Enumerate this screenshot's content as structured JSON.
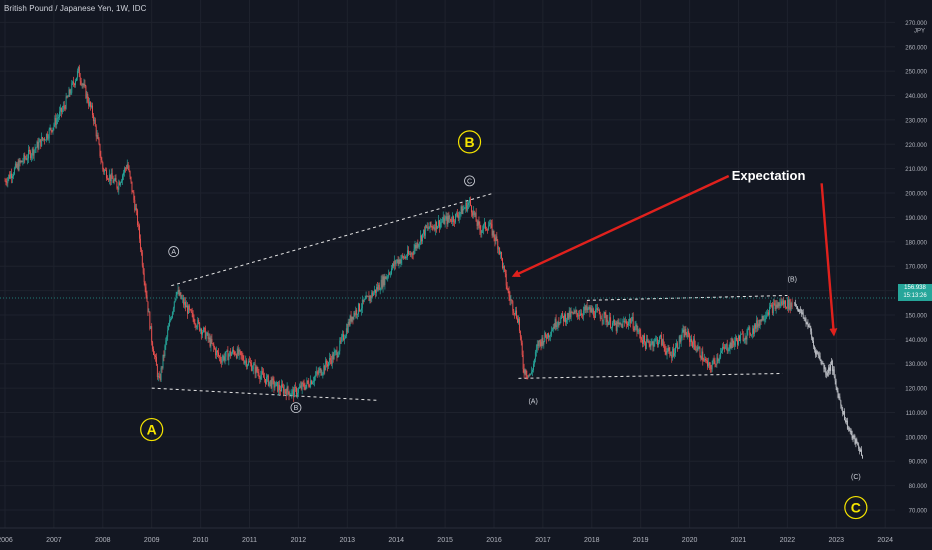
{
  "header": {
    "title": "British Pound / Japanese Yen, 1W, IDC"
  },
  "price_tag": {
    "price": "156.938",
    "countdown": "15:13:26",
    "color": "#26a69a"
  },
  "colors": {
    "background": "#131722",
    "grid": "#1e222d",
    "up": "#26a69a",
    "down": "#ef5350",
    "axis_text": "#b2b5be",
    "projection": "#c0c3c9",
    "annotation_arrow": "#e0211d",
    "wave_letter": "#f5e400"
  },
  "chart_data": {
    "type": "line",
    "title": "British Pound / Japanese Yen, 1W, IDC",
    "xlabel": "",
    "ylabel": "",
    "currency_label": "JPY",
    "ylim": [
      66,
      270
    ],
    "xlim": [
      2006.0,
      2024.3
    ],
    "grid": true,
    "y_ticks": [
      "70.000",
      "80.000",
      "90.000",
      "100.000",
      "110.000",
      "120.000",
      "130.000",
      "140.000",
      "150.000",
      "160.000",
      "170.000",
      "180.000",
      "190.000",
      "200.000",
      "210.000",
      "220.000",
      "230.000",
      "240.000",
      "250.000",
      "260.000",
      "270.000"
    ],
    "x_ticks": [
      "2006",
      "2007",
      "2008",
      "2009",
      "2010",
      "2011",
      "2012",
      "2013",
      "2014",
      "2015",
      "2016",
      "2017",
      "2018",
      "2019",
      "2020",
      "2021",
      "2022",
      "2023",
      "2024"
    ],
    "series": [
      {
        "kind": "history",
        "x": [
          2006.0,
          2006.3,
          2006.6,
          2006.9,
          2007.2,
          2007.5,
          2007.8,
          2008.0,
          2008.3,
          2008.5,
          2008.7,
          2008.85,
          2009.0,
          2009.15,
          2009.3,
          2009.5,
          2009.8,
          2010.1,
          2010.4,
          2010.7,
          2011.0,
          2011.3,
          2011.6,
          2011.9,
          2012.2,
          2012.5,
          2012.8,
          2013.1,
          2013.4,
          2013.7,
          2014.0,
          2014.3,
          2014.6,
          2014.9,
          2015.2,
          2015.5,
          2015.7,
          2015.9,
          2016.1,
          2016.3,
          2016.5,
          2016.6,
          2016.75,
          2016.9,
          2017.1,
          2017.3,
          2017.6,
          2017.9,
          2018.2,
          2018.5,
          2018.8,
          2019.1,
          2019.4,
          2019.6,
          2019.9,
          2020.2,
          2020.4,
          2020.7,
          2021.0,
          2021.3,
          2021.6,
          2021.9,
          2022.1
        ],
        "y": [
          205,
          212,
          218,
          225,
          235,
          250,
          232,
          210,
          203,
          212,
          190,
          165,
          140,
          122,
          140,
          160,
          150,
          142,
          132,
          135,
          130,
          124,
          120,
          118,
          122,
          128,
          135,
          150,
          156,
          163,
          172,
          175,
          185,
          188,
          190,
          196,
          185,
          187,
          178,
          158,
          148,
          128,
          125,
          138,
          142,
          148,
          150,
          152,
          150,
          145,
          148,
          138,
          140,
          133,
          143,
          135,
          128,
          136,
          140,
          144,
          152,
          155,
          154
        ],
        "color_up": "#26a69a",
        "color_down": "#ef5350"
      },
      {
        "kind": "projection",
        "x": [
          2022.15,
          2022.3,
          2022.45,
          2022.55,
          2022.65,
          2022.8,
          2022.9,
          2023.0,
          2023.1,
          2023.2,
          2023.3,
          2023.45,
          2023.55
        ],
        "y": [
          155,
          150,
          145,
          136,
          133,
          126,
          130,
          120,
          113,
          106,
          101,
          96,
          92
        ],
        "color": "#c0c3c9"
      }
    ],
    "trend_lines": [
      {
        "x1": 2009.4,
        "y1": 162,
        "x2": 2016.0,
        "y2": 200
      },
      {
        "x1": 2009.0,
        "y1": 120,
        "x2": 2013.6,
        "y2": 115
      },
      {
        "x1": 2017.9,
        "y1": 156,
        "x2": 2022.0,
        "y2": 158
      },
      {
        "x1": 2016.5,
        "y1": 124,
        "x2": 2021.9,
        "y2": 126
      }
    ],
    "annotations": {
      "expectation": "Expectation",
      "wave_labels": [
        {
          "text": "A",
          "x": 2009.0,
          "y": 103,
          "style": "major"
        },
        {
          "text": "B",
          "x": 2015.5,
          "y": 221,
          "style": "major"
        },
        {
          "text": "C",
          "x": 2023.4,
          "y": 71,
          "style": "major"
        },
        {
          "text": "A",
          "x": 2009.45,
          "y": 176,
          "style": "minor"
        },
        {
          "text": "B",
          "x": 2011.95,
          "y": 112,
          "style": "minor"
        },
        {
          "text": "C",
          "x": 2015.5,
          "y": 205,
          "style": "minor"
        },
        {
          "text": "(A)",
          "x": 2016.8,
          "y": 115,
          "style": "text"
        },
        {
          "text": "(B)",
          "x": 2022.1,
          "y": 165,
          "style": "text"
        },
        {
          "text": "(C)",
          "x": 2023.4,
          "y": 84,
          "style": "text"
        }
      ],
      "arrows": [
        {
          "from_x": 2020.8,
          "from_y": 207,
          "to_x": 2016.4,
          "to_y": 166
        },
        {
          "from_x": 2022.7,
          "from_y": 204,
          "to_x": 2022.95,
          "to_y": 142
        }
      ]
    }
  }
}
